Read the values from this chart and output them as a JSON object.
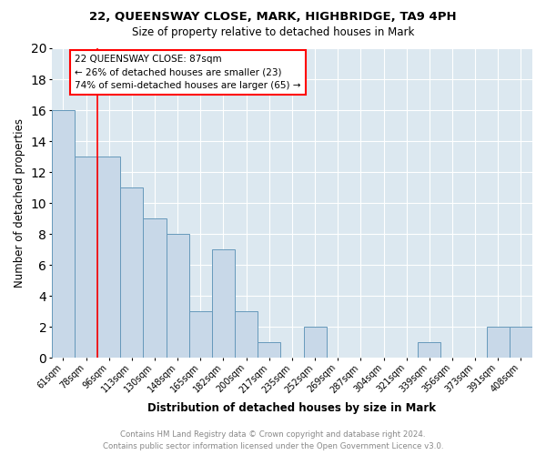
{
  "title": "22, QUEENSWAY CLOSE, MARK, HIGHBRIDGE, TA9 4PH",
  "subtitle": "Size of property relative to detached houses in Mark",
  "xlabel": "Distribution of detached houses by size in Mark",
  "ylabel": "Number of detached properties",
  "bar_color": "#c8d8e8",
  "bar_edge_color": "#6699bb",
  "background_color": "#dce8f0",
  "grid_color": "#ffffff",
  "categories": [
    "61sqm",
    "78sqm",
    "96sqm",
    "113sqm",
    "130sqm",
    "148sqm",
    "165sqm",
    "182sqm",
    "200sqm",
    "217sqm",
    "235sqm",
    "252sqm",
    "269sqm",
    "287sqm",
    "304sqm",
    "321sqm",
    "339sqm",
    "356sqm",
    "373sqm",
    "391sqm",
    "408sqm"
  ],
  "values": [
    16,
    13,
    13,
    11,
    9,
    8,
    3,
    7,
    3,
    1,
    0,
    2,
    0,
    0,
    0,
    0,
    1,
    0,
    0,
    2,
    2
  ],
  "annotation_title": "22 QUEENSWAY CLOSE: 87sqm",
  "annotation_line1": "← 26% of detached houses are smaller (23)",
  "annotation_line2": "74% of semi-detached houses are larger (65) →",
  "footer_line1": "Contains HM Land Registry data © Crown copyright and database right 2024.",
  "footer_line2": "Contains public sector information licensed under the Open Government Licence v3.0.",
  "red_line_x": 1.5,
  "ylim": [
    0,
    20
  ],
  "yticks": [
    0,
    2,
    4,
    6,
    8,
    10,
    12,
    14,
    16,
    18,
    20
  ]
}
